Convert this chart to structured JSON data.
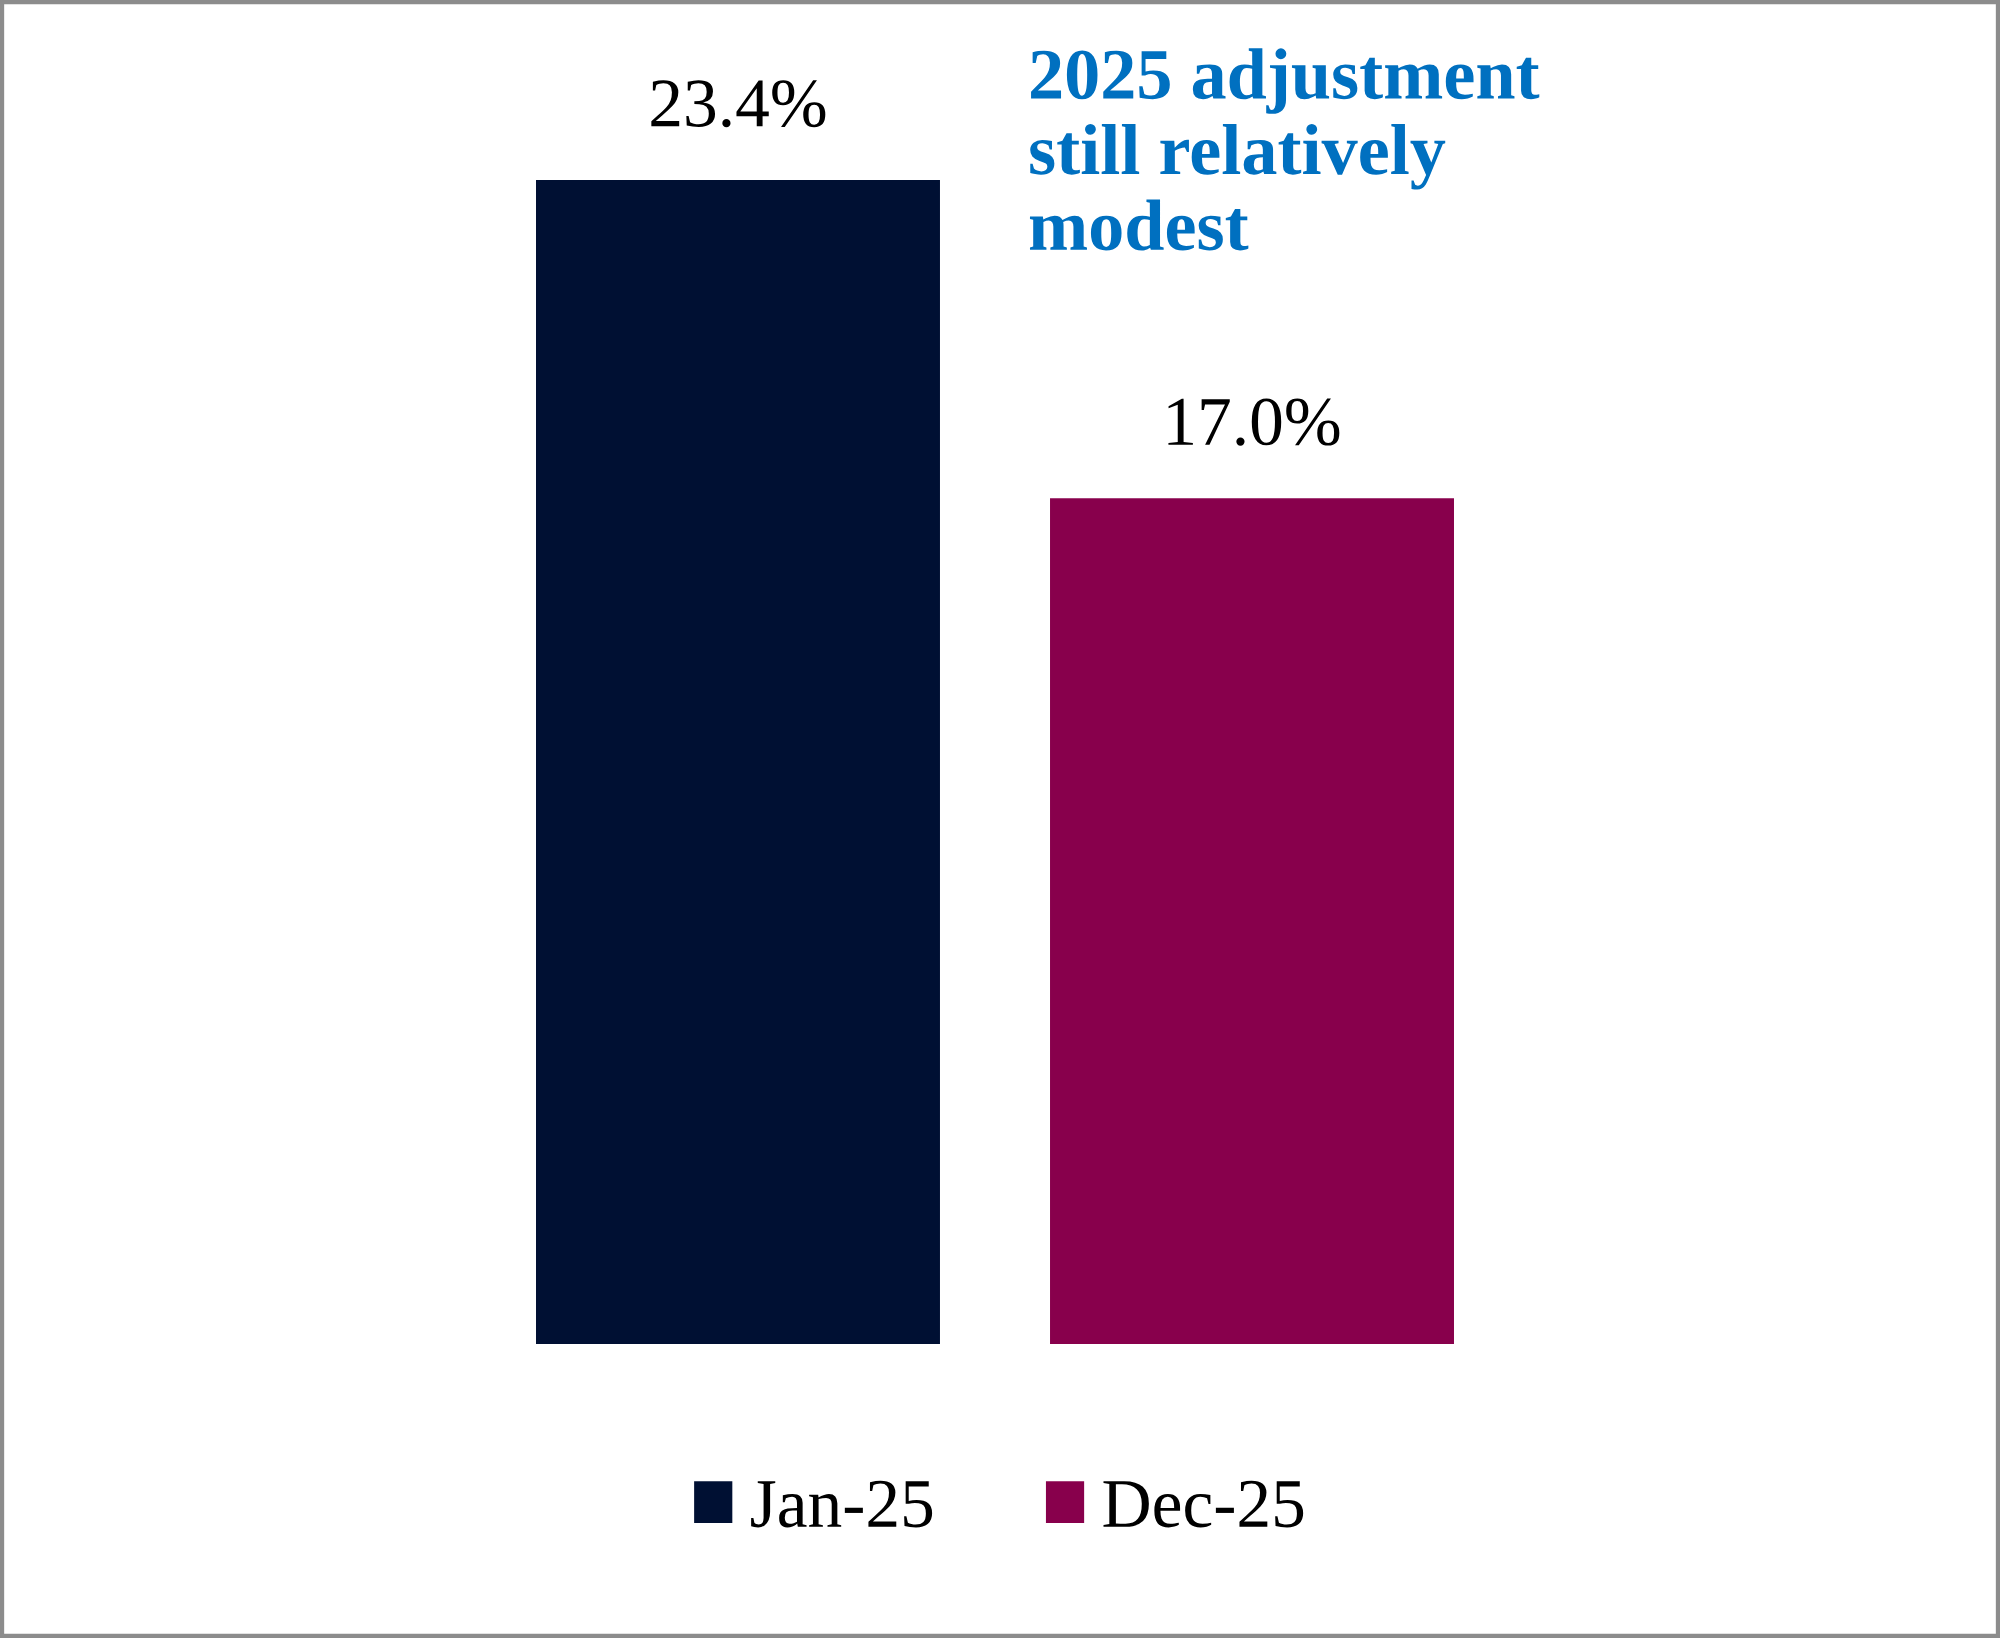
{
  "chart_data": {
    "type": "bar",
    "categories": [
      null
    ],
    "series": [
      {
        "name": "Jan-25",
        "color": "#001033",
        "values": [
          23.4
        ],
        "value_labels": [
          "23.4%"
        ]
      },
      {
        "name": "Dec-25",
        "color": "#88004c",
        "values": [
          17.0
        ],
        "value_labels": [
          "17.0%"
        ]
      }
    ],
    "annotations": [
      "2025 adjustment\nstill relatively\nmodest"
    ],
    "legend": "bottom",
    "tick_labels": false
  }
}
